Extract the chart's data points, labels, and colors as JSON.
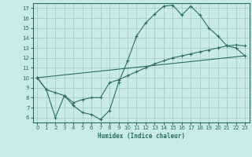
{
  "title": "",
  "xlabel": "Humidex (Indice chaleur)",
  "xlim": [
    -0.5,
    23.5
  ],
  "ylim": [
    5.5,
    17.5
  ],
  "xticks": [
    0,
    1,
    2,
    3,
    4,
    5,
    6,
    7,
    8,
    9,
    10,
    11,
    12,
    13,
    14,
    15,
    16,
    17,
    18,
    19,
    20,
    21,
    22,
    23
  ],
  "yticks": [
    6,
    7,
    8,
    9,
    10,
    11,
    12,
    13,
    14,
    15,
    16,
    17
  ],
  "bg_color": "#c8eae8",
  "grid_color": "#a8cdc8",
  "line_color": "#2a6e62",
  "line1_x": [
    0,
    1,
    2,
    3,
    4,
    5,
    6,
    7,
    8,
    9,
    10,
    11,
    12,
    13,
    14,
    15,
    16,
    17,
    18,
    19,
    20,
    21,
    22,
    23
  ],
  "line1_y": [
    10,
    8.8,
    6.0,
    8.2,
    7.2,
    6.5,
    6.3,
    5.8,
    6.7,
    9.5,
    11.7,
    14.2,
    15.5,
    16.4,
    17.2,
    17.3,
    16.3,
    17.2,
    16.3,
    15.0,
    14.2,
    13.2,
    13.0,
    12.2
  ],
  "line2_x": [
    0,
    1,
    2,
    3,
    4,
    5,
    6,
    7,
    8,
    9,
    10,
    11,
    12,
    13,
    14,
    15,
    16,
    17,
    18,
    19,
    20,
    21,
    22,
    23
  ],
  "line2_y": [
    10,
    8.8,
    8.5,
    8.2,
    7.5,
    7.8,
    8.0,
    8.0,
    9.5,
    9.8,
    10.2,
    10.6,
    11.0,
    11.4,
    11.7,
    12.0,
    12.2,
    12.4,
    12.6,
    12.8,
    13.0,
    13.2,
    13.3,
    13.2
  ],
  "line3_x": [
    0,
    23
  ],
  "line3_y": [
    10,
    12.2
  ]
}
